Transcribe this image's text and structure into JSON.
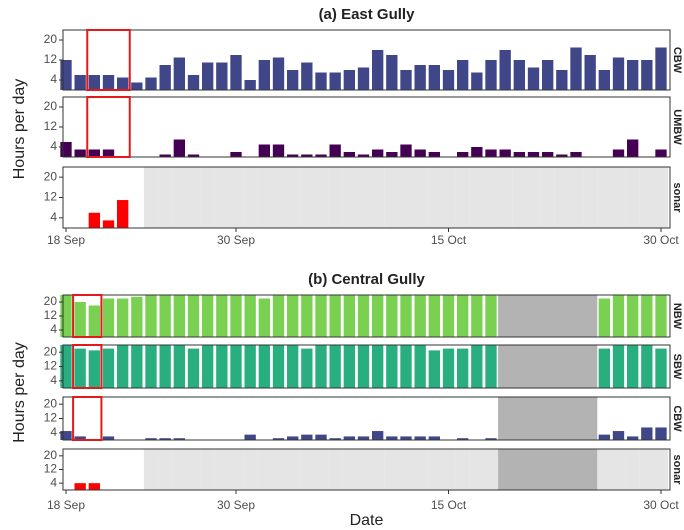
{
  "chart_data": [
    {
      "type": "bar",
      "title": "(a) East Gully",
      "y_label": "Hours per day",
      "categories": [
        "18 Sep",
        null,
        null,
        null,
        null,
        null,
        null,
        null,
        null,
        null,
        null,
        null,
        "30 Sep",
        null,
        null,
        null,
        null,
        null,
        null,
        null,
        null,
        null,
        null,
        null,
        null,
        null,
        null,
        "15 Oct",
        null,
        null,
        null,
        null,
        null,
        null,
        null,
        null,
        null,
        null,
        null,
        null,
        null,
        null,
        "30 Oct"
      ],
      "ylim": [
        0,
        24
      ],
      "yticks": [
        4,
        12,
        20
      ],
      "missing_color": "#e5e5e5",
      "highlight": {
        "from": 2,
        "to": 4,
        "series": [
          0,
          1
        ],
        "color": "#e31a1c"
      },
      "series": [
        {
          "name": "CBW",
          "color": "#404788",
          "values": [
            12,
            6,
            6,
            6,
            5,
            3,
            5,
            10,
            13,
            6,
            11,
            11,
            14,
            4,
            12,
            13,
            8,
            11,
            7,
            7,
            8,
            9,
            16,
            14,
            8,
            10,
            10,
            8,
            12,
            7,
            12,
            16,
            12,
            9,
            12,
            8,
            17,
            14,
            8,
            13,
            12,
            12,
            17
          ]
        },
        {
          "name": "UMBW",
          "color": "#440154",
          "values": [
            6,
            3,
            3,
            3,
            0,
            0,
            0,
            1,
            7,
            1,
            0,
            0,
            2,
            0,
            5,
            5,
            1,
            1,
            1,
            5,
            2,
            1,
            3,
            2,
            5,
            3,
            2,
            0,
            2,
            4,
            3,
            3,
            2,
            2,
            2,
            1,
            2,
            0,
            0,
            3,
            7,
            0,
            3
          ]
        },
        {
          "name": "sonar",
          "color": "#ff0000",
          "values": [
            0,
            0,
            6,
            3,
            11,
            0,
            null,
            null,
            null,
            null,
            null,
            null,
            null,
            null,
            null,
            null,
            null,
            null,
            null,
            null,
            null,
            null,
            null,
            null,
            null,
            null,
            null,
            null,
            null,
            null,
            null,
            null,
            null,
            null,
            null,
            null,
            null,
            null,
            null,
            null,
            null,
            null,
            null
          ]
        }
      ]
    },
    {
      "type": "bar",
      "title": "(b) Central Gully",
      "y_label": "Hours per day",
      "x_label": "Date",
      "categories": [
        "18 Sep",
        null,
        null,
        null,
        null,
        null,
        null,
        null,
        null,
        null,
        null,
        null,
        "30 Sep",
        null,
        null,
        null,
        null,
        null,
        null,
        null,
        null,
        null,
        null,
        null,
        null,
        null,
        null,
        "15 Oct",
        null,
        null,
        null,
        null,
        null,
        null,
        null,
        null,
        null,
        null,
        null,
        null,
        null,
        null,
        "30 Oct"
      ],
      "ylim": [
        0,
        24
      ],
      "yticks": [
        4,
        12,
        20
      ],
      "missing_color": "#e5e5e5",
      "gap": {
        "from": 31,
        "to": 37,
        "color": "#b3b3b3"
      },
      "highlight": {
        "from": 1,
        "to": 2,
        "series": [
          0,
          1,
          2
        ],
        "color": "#e31a1c"
      },
      "series": [
        {
          "name": "NBW",
          "color": "#7ad151",
          "values": [
            24,
            20,
            18,
            22,
            22,
            23,
            24,
            24,
            24,
            24,
            24,
            24,
            24,
            24,
            22,
            24,
            24,
            24,
            24,
            24,
            24,
            24,
            24,
            24,
            24,
            24,
            24,
            24,
            24,
            24,
            24,
            null,
            null,
            null,
            null,
            null,
            null,
            null,
            22,
            24,
            24,
            24,
            24
          ]
        },
        {
          "name": "SBW",
          "color": "#29af7f",
          "values": [
            24,
            22,
            21,
            22,
            24,
            24,
            24,
            24,
            24,
            22,
            24,
            24,
            24,
            24,
            24,
            24,
            24,
            22,
            24,
            24,
            24,
            24,
            24,
            24,
            24,
            24,
            21,
            22,
            22,
            24,
            24,
            null,
            null,
            null,
            null,
            null,
            null,
            null,
            22,
            24,
            24,
            24,
            22
          ]
        },
        {
          "name": "CBW",
          "color": "#404788",
          "values": [
            5,
            2,
            0,
            2,
            0,
            0,
            1,
            1,
            1,
            0,
            0,
            0,
            0,
            3,
            0,
            1,
            2,
            3,
            3,
            1,
            2,
            2,
            5,
            2,
            2,
            2,
            2,
            0,
            1,
            0,
            1,
            null,
            null,
            null,
            null,
            null,
            null,
            null,
            3,
            5,
            2,
            7,
            7
          ]
        },
        {
          "name": "sonar",
          "color": "#ff0000",
          "values": [
            0,
            4,
            4,
            0,
            0,
            0,
            null,
            null,
            null,
            null,
            null,
            null,
            null,
            null,
            null,
            null,
            null,
            null,
            null,
            null,
            null,
            null,
            null,
            null,
            null,
            null,
            null,
            null,
            null,
            null,
            null,
            null,
            null,
            null,
            null,
            null,
            null,
            null,
            null,
            null,
            null,
            null,
            null
          ]
        }
      ]
    }
  ]
}
